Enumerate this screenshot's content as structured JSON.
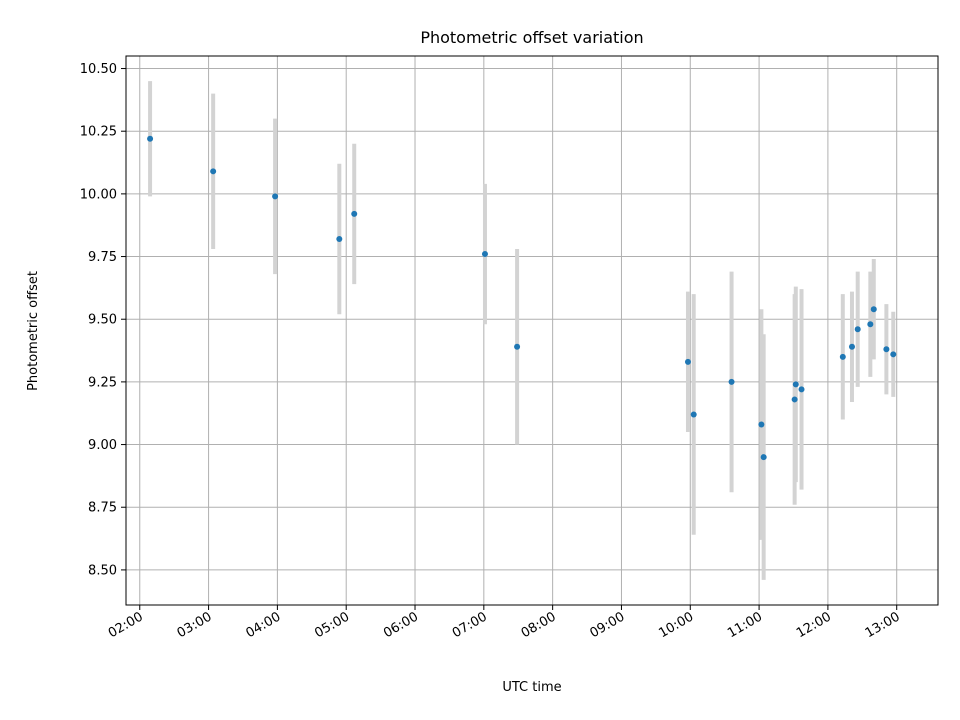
{
  "chart_data": {
    "type": "scatter",
    "title": "Photometric offset variation",
    "xlabel": "UTC time",
    "ylabel": "Photometric offset",
    "x_axis": "time",
    "xlim": [
      "01:48",
      "13:36"
    ],
    "ylim": [
      8.36,
      10.55
    ],
    "grid": true,
    "x_ticks": [
      "02:00",
      "03:00",
      "04:00",
      "05:00",
      "06:00",
      "07:00",
      "08:00",
      "09:00",
      "10:00",
      "11:00",
      "12:00",
      "13:00"
    ],
    "y_ticks": [
      "8.50",
      "8.75",
      "9.00",
      "9.25",
      "9.50",
      "9.75",
      "10.00",
      "10.25",
      "10.50"
    ],
    "marker_color": "#1f77b4",
    "errorbar_color": "#d3d3d3",
    "points": [
      {
        "t": "02:09",
        "y": 10.22,
        "err": 0.23
      },
      {
        "t": "03:04",
        "y": 10.09,
        "err": 0.31
      },
      {
        "t": "03:58",
        "y": 9.99,
        "err": 0.31
      },
      {
        "t": "04:54",
        "y": 9.82,
        "err": 0.3
      },
      {
        "t": "05:07",
        "y": 9.92,
        "err": 0.28
      },
      {
        "t": "07:01",
        "y": 9.76,
        "err": 0.28
      },
      {
        "t": "07:29",
        "y": 9.39,
        "err": 0.39
      },
      {
        "t": "09:58",
        "y": 9.33,
        "err": 0.28
      },
      {
        "t": "10:03",
        "y": 9.12,
        "err": 0.48
      },
      {
        "t": "10:36",
        "y": 9.25,
        "err": 0.44
      },
      {
        "t": "11:02",
        "y": 9.08,
        "err": 0.46
      },
      {
        "t": "11:04",
        "y": 8.95,
        "err": 0.49
      },
      {
        "t": "11:31",
        "y": 9.18,
        "err": 0.42
      },
      {
        "t": "11:32",
        "y": 9.24,
        "err": 0.39
      },
      {
        "t": "11:37",
        "y": 9.22,
        "err": 0.4
      },
      {
        "t": "12:13",
        "y": 9.35,
        "err": 0.25
      },
      {
        "t": "12:21",
        "y": 9.39,
        "err": 0.22
      },
      {
        "t": "12:26",
        "y": 9.46,
        "err": 0.23
      },
      {
        "t": "12:37",
        "y": 9.48,
        "err": 0.21
      },
      {
        "t": "12:40",
        "y": 9.54,
        "err": 0.2
      },
      {
        "t": "12:51",
        "y": 9.38,
        "err": 0.18
      },
      {
        "t": "12:57",
        "y": 9.36,
        "err": 0.17
      }
    ]
  }
}
